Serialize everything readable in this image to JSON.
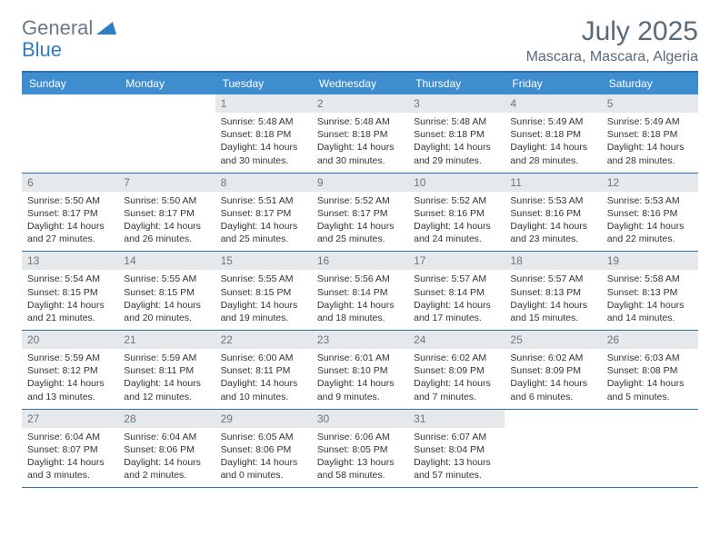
{
  "logo": {
    "word1": "General",
    "word2": "Blue",
    "triangle_color": "#2f7ec2"
  },
  "title": "July 2025",
  "location": "Mascara, Mascara, Algeria",
  "colors": {
    "header_bar": "#3e8ecf",
    "rule": "#2f6fa8",
    "daynum_bg": "#e6e9ec",
    "daynum_text": "#6a7580",
    "text": "#333333",
    "title_text": "#5a6a78"
  },
  "dow": [
    "Sunday",
    "Monday",
    "Tuesday",
    "Wednesday",
    "Thursday",
    "Friday",
    "Saturday"
  ],
  "weeks": [
    [
      {
        "n": "",
        "sunrise": "",
        "sunset": "",
        "daylight": ""
      },
      {
        "n": "",
        "sunrise": "",
        "sunset": "",
        "daylight": ""
      },
      {
        "n": "1",
        "sunrise": "Sunrise: 5:48 AM",
        "sunset": "Sunset: 8:18 PM",
        "daylight": "Daylight: 14 hours and 30 minutes."
      },
      {
        "n": "2",
        "sunrise": "Sunrise: 5:48 AM",
        "sunset": "Sunset: 8:18 PM",
        "daylight": "Daylight: 14 hours and 30 minutes."
      },
      {
        "n": "3",
        "sunrise": "Sunrise: 5:48 AM",
        "sunset": "Sunset: 8:18 PM",
        "daylight": "Daylight: 14 hours and 29 minutes."
      },
      {
        "n": "4",
        "sunrise": "Sunrise: 5:49 AM",
        "sunset": "Sunset: 8:18 PM",
        "daylight": "Daylight: 14 hours and 28 minutes."
      },
      {
        "n": "5",
        "sunrise": "Sunrise: 5:49 AM",
        "sunset": "Sunset: 8:18 PM",
        "daylight": "Daylight: 14 hours and 28 minutes."
      }
    ],
    [
      {
        "n": "6",
        "sunrise": "Sunrise: 5:50 AM",
        "sunset": "Sunset: 8:17 PM",
        "daylight": "Daylight: 14 hours and 27 minutes."
      },
      {
        "n": "7",
        "sunrise": "Sunrise: 5:50 AM",
        "sunset": "Sunset: 8:17 PM",
        "daylight": "Daylight: 14 hours and 26 minutes."
      },
      {
        "n": "8",
        "sunrise": "Sunrise: 5:51 AM",
        "sunset": "Sunset: 8:17 PM",
        "daylight": "Daylight: 14 hours and 25 minutes."
      },
      {
        "n": "9",
        "sunrise": "Sunrise: 5:52 AM",
        "sunset": "Sunset: 8:17 PM",
        "daylight": "Daylight: 14 hours and 25 minutes."
      },
      {
        "n": "10",
        "sunrise": "Sunrise: 5:52 AM",
        "sunset": "Sunset: 8:16 PM",
        "daylight": "Daylight: 14 hours and 24 minutes."
      },
      {
        "n": "11",
        "sunrise": "Sunrise: 5:53 AM",
        "sunset": "Sunset: 8:16 PM",
        "daylight": "Daylight: 14 hours and 23 minutes."
      },
      {
        "n": "12",
        "sunrise": "Sunrise: 5:53 AM",
        "sunset": "Sunset: 8:16 PM",
        "daylight": "Daylight: 14 hours and 22 minutes."
      }
    ],
    [
      {
        "n": "13",
        "sunrise": "Sunrise: 5:54 AM",
        "sunset": "Sunset: 8:15 PM",
        "daylight": "Daylight: 14 hours and 21 minutes."
      },
      {
        "n": "14",
        "sunrise": "Sunrise: 5:55 AM",
        "sunset": "Sunset: 8:15 PM",
        "daylight": "Daylight: 14 hours and 20 minutes."
      },
      {
        "n": "15",
        "sunrise": "Sunrise: 5:55 AM",
        "sunset": "Sunset: 8:15 PM",
        "daylight": "Daylight: 14 hours and 19 minutes."
      },
      {
        "n": "16",
        "sunrise": "Sunrise: 5:56 AM",
        "sunset": "Sunset: 8:14 PM",
        "daylight": "Daylight: 14 hours and 18 minutes."
      },
      {
        "n": "17",
        "sunrise": "Sunrise: 5:57 AM",
        "sunset": "Sunset: 8:14 PM",
        "daylight": "Daylight: 14 hours and 17 minutes."
      },
      {
        "n": "18",
        "sunrise": "Sunrise: 5:57 AM",
        "sunset": "Sunset: 8:13 PM",
        "daylight": "Daylight: 14 hours and 15 minutes."
      },
      {
        "n": "19",
        "sunrise": "Sunrise: 5:58 AM",
        "sunset": "Sunset: 8:13 PM",
        "daylight": "Daylight: 14 hours and 14 minutes."
      }
    ],
    [
      {
        "n": "20",
        "sunrise": "Sunrise: 5:59 AM",
        "sunset": "Sunset: 8:12 PM",
        "daylight": "Daylight: 14 hours and 13 minutes."
      },
      {
        "n": "21",
        "sunrise": "Sunrise: 5:59 AM",
        "sunset": "Sunset: 8:11 PM",
        "daylight": "Daylight: 14 hours and 12 minutes."
      },
      {
        "n": "22",
        "sunrise": "Sunrise: 6:00 AM",
        "sunset": "Sunset: 8:11 PM",
        "daylight": "Daylight: 14 hours and 10 minutes."
      },
      {
        "n": "23",
        "sunrise": "Sunrise: 6:01 AM",
        "sunset": "Sunset: 8:10 PM",
        "daylight": "Daylight: 14 hours and 9 minutes."
      },
      {
        "n": "24",
        "sunrise": "Sunrise: 6:02 AM",
        "sunset": "Sunset: 8:09 PM",
        "daylight": "Daylight: 14 hours and 7 minutes."
      },
      {
        "n": "25",
        "sunrise": "Sunrise: 6:02 AM",
        "sunset": "Sunset: 8:09 PM",
        "daylight": "Daylight: 14 hours and 6 minutes."
      },
      {
        "n": "26",
        "sunrise": "Sunrise: 6:03 AM",
        "sunset": "Sunset: 8:08 PM",
        "daylight": "Daylight: 14 hours and 5 minutes."
      }
    ],
    [
      {
        "n": "27",
        "sunrise": "Sunrise: 6:04 AM",
        "sunset": "Sunset: 8:07 PM",
        "daylight": "Daylight: 14 hours and 3 minutes."
      },
      {
        "n": "28",
        "sunrise": "Sunrise: 6:04 AM",
        "sunset": "Sunset: 8:06 PM",
        "daylight": "Daylight: 14 hours and 2 minutes."
      },
      {
        "n": "29",
        "sunrise": "Sunrise: 6:05 AM",
        "sunset": "Sunset: 8:06 PM",
        "daylight": "Daylight: 14 hours and 0 minutes."
      },
      {
        "n": "30",
        "sunrise": "Sunrise: 6:06 AM",
        "sunset": "Sunset: 8:05 PM",
        "daylight": "Daylight: 13 hours and 58 minutes."
      },
      {
        "n": "31",
        "sunrise": "Sunrise: 6:07 AM",
        "sunset": "Sunset: 8:04 PM",
        "daylight": "Daylight: 13 hours and 57 minutes."
      },
      {
        "n": "",
        "sunrise": "",
        "sunset": "",
        "daylight": ""
      },
      {
        "n": "",
        "sunrise": "",
        "sunset": "",
        "daylight": ""
      }
    ]
  ]
}
